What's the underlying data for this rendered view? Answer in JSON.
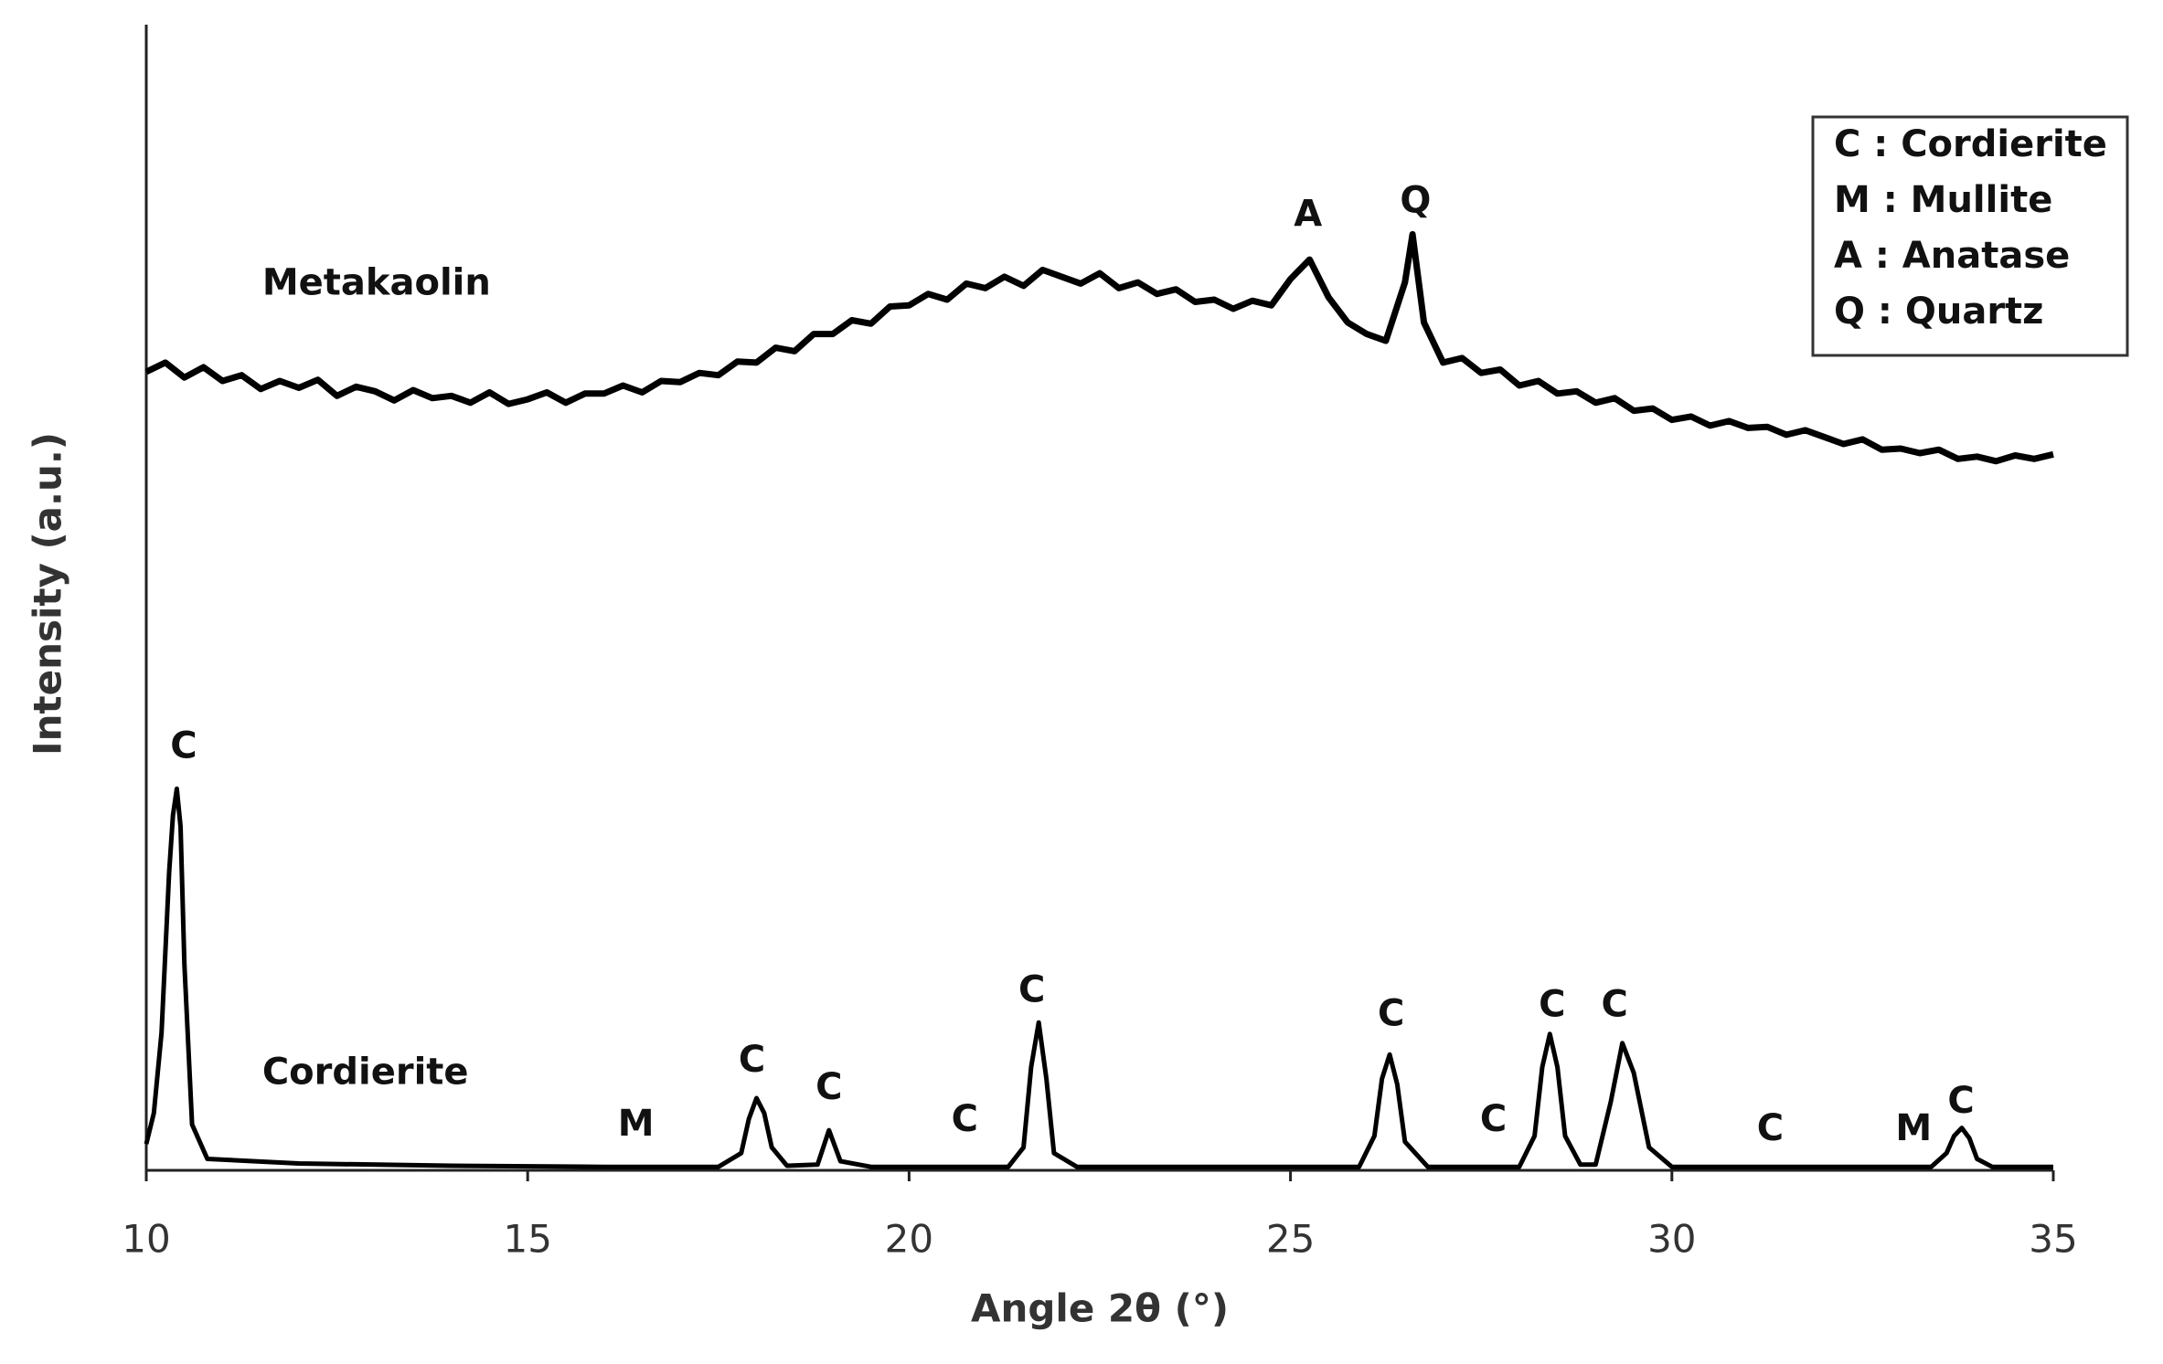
{
  "chart_data": {
    "type": "line",
    "x_label": "Angle 2θ (°)",
    "y_label": "Intensity (a.u.)",
    "xlim": [
      10,
      35
    ],
    "xticks": [
      10,
      15,
      20,
      25,
      30,
      35
    ],
    "ylim": [
      0,
      100
    ],
    "grid": false,
    "legend_position": "upper right",
    "legend_entries": [
      "C : Cordierite",
      "M : Mullite",
      "A : Anatase",
      "Q : Quartz"
    ],
    "series": [
      {
        "name": "Metakaolin",
        "color": "#000000",
        "label_x": 11.52,
        "label_y": 77.3,
        "x": [
          10,
          10.25,
          10.5,
          10.75,
          11,
          11.25,
          11.5,
          11.75,
          12,
          12.25,
          12.5,
          12.75,
          13,
          13.25,
          13.5,
          13.75,
          14,
          14.25,
          14.5,
          14.75,
          15,
          15.25,
          15.5,
          15.75,
          16,
          16.25,
          16.5,
          16.75,
          17,
          17.25,
          17.5,
          17.75,
          18,
          18.25,
          18.5,
          18.75,
          19,
          19.25,
          19.5,
          19.75,
          20,
          20.25,
          20.5,
          20.75,
          21,
          21.25,
          21.5,
          21.75,
          22,
          22.25,
          22.5,
          22.75,
          23,
          23.25,
          23.5,
          23.75,
          24,
          24.25,
          24.5,
          24.75,
          25,
          25.25,
          25.5,
          25.75,
          26,
          26.25,
          26.5,
          26.6,
          26.75,
          27,
          27.25,
          27.5,
          27.75,
          28,
          28.25,
          28.5,
          28.75,
          29,
          29.25,
          29.5,
          29.75,
          30,
          30.25,
          30.5,
          30.75,
          31,
          31.25,
          31.5,
          31.75,
          32,
          32.25,
          32.5,
          32.75,
          33,
          33.25,
          33.5,
          33.75,
          34,
          34.25,
          34.5,
          34.75,
          35
        ],
        "values": [
          69.7,
          70.5,
          69.2,
          70.1,
          68.9,
          69.4,
          68.2,
          68.9,
          68.3,
          69.0,
          67.6,
          68.4,
          68.0,
          67.2,
          68.1,
          67.4,
          67.6,
          67.0,
          67.9,
          66.9,
          67.3,
          67.9,
          67.0,
          67.8,
          67.8,
          68.5,
          67.9,
          68.9,
          68.8,
          69.6,
          69.4,
          70.6,
          70.5,
          71.8,
          71.5,
          73.0,
          73.0,
          74.2,
          73.9,
          75.4,
          75.5,
          76.5,
          76.0,
          77.4,
          77.0,
          78.0,
          77.2,
          78.6,
          78.0,
          77.4,
          78.3,
          77.0,
          77.5,
          76.5,
          76.9,
          75.8,
          76.0,
          75.2,
          75.9,
          75.5,
          77.8,
          79.5,
          76.2,
          74.0,
          73.0,
          72.4,
          77.5,
          81.7,
          74.0,
          70.5,
          70.9,
          69.6,
          69.9,
          68.5,
          68.9,
          67.8,
          68.0,
          67.0,
          67.4,
          66.3,
          66.5,
          65.5,
          65.8,
          65.0,
          65.4,
          64.8,
          64.9,
          64.2,
          64.6,
          64.0,
          63.4,
          63.8,
          62.9,
          63.0,
          62.6,
          62.9,
          62.1,
          62.3,
          61.9,
          62.4,
          62.1,
          62.5
        ]
      },
      {
        "name": "Cordierite",
        "color": "#000000",
        "label_x": 11.52,
        "label_y": 8.4,
        "x": [
          10,
          10.1,
          10.2,
          10.3,
          10.35,
          10.4,
          10.45,
          10.5,
          10.6,
          10.8,
          12,
          14,
          16,
          17.5,
          17.8,
          17.9,
          18.0,
          18.1,
          18.2,
          18.4,
          18.8,
          18.95,
          19.1,
          19.5,
          21.3,
          21.5,
          21.6,
          21.7,
          21.8,
          21.9,
          22.2,
          25.9,
          26.1,
          26.2,
          26.3,
          26.4,
          26.5,
          26.8,
          28.0,
          28.2,
          28.3,
          28.4,
          28.5,
          28.6,
          28.8,
          29.0,
          29.2,
          29.35,
          29.5,
          29.7,
          30.0,
          33.4,
          33.6,
          33.7,
          33.8,
          33.9,
          34.0,
          34.2,
          35
        ],
        "values": [
          2.3,
          5,
          12,
          26,
          31,
          33.3,
          30,
          18,
          4,
          1.0,
          0.6,
          0.4,
          0.3,
          0.3,
          1.5,
          4.5,
          6.3,
          5,
          2,
          0.4,
          0.5,
          3.5,
          0.8,
          0.3,
          0.3,
          2,
          9,
          12.9,
          8,
          1.5,
          0.3,
          0.3,
          3,
          8,
          10.1,
          7.5,
          2.5,
          0.3,
          0.3,
          3,
          9,
          11.9,
          9,
          3,
          0.5,
          0.5,
          6,
          11.1,
          8.5,
          2,
          0.3,
          0.3,
          1.5,
          3,
          3.7,
          2.8,
          1,
          0.3,
          0.3
        ]
      }
    ],
    "annotations": [
      {
        "text": "A",
        "x": 25.23,
        "y": 83.3
      },
      {
        "text": "Q",
        "x": 26.64,
        "y": 84.5
      },
      {
        "text": "C",
        "x": 10.49,
        "y": 36.9
      },
      {
        "text": "M",
        "x": 16.42,
        "y": 3.9
      },
      {
        "text": "C",
        "x": 17.94,
        "y": 9.5
      },
      {
        "text": "C",
        "x": 18.95,
        "y": 7.1
      },
      {
        "text": "C",
        "x": 20.73,
        "y": 4.3
      },
      {
        "text": "C",
        "x": 21.61,
        "y": 15.6
      },
      {
        "text": "C",
        "x": 26.32,
        "y": 13.5
      },
      {
        "text": "C",
        "x": 27.66,
        "y": 4.3
      },
      {
        "text": "C",
        "x": 28.43,
        "y": 14.3
      },
      {
        "text": "C",
        "x": 29.25,
        "y": 14.3
      },
      {
        "text": "C",
        "x": 31.29,
        "y": 3.5
      },
      {
        "text": "M",
        "x": 33.17,
        "y": 3.5
      },
      {
        "text": "C",
        "x": 33.79,
        "y": 5.9
      }
    ]
  }
}
